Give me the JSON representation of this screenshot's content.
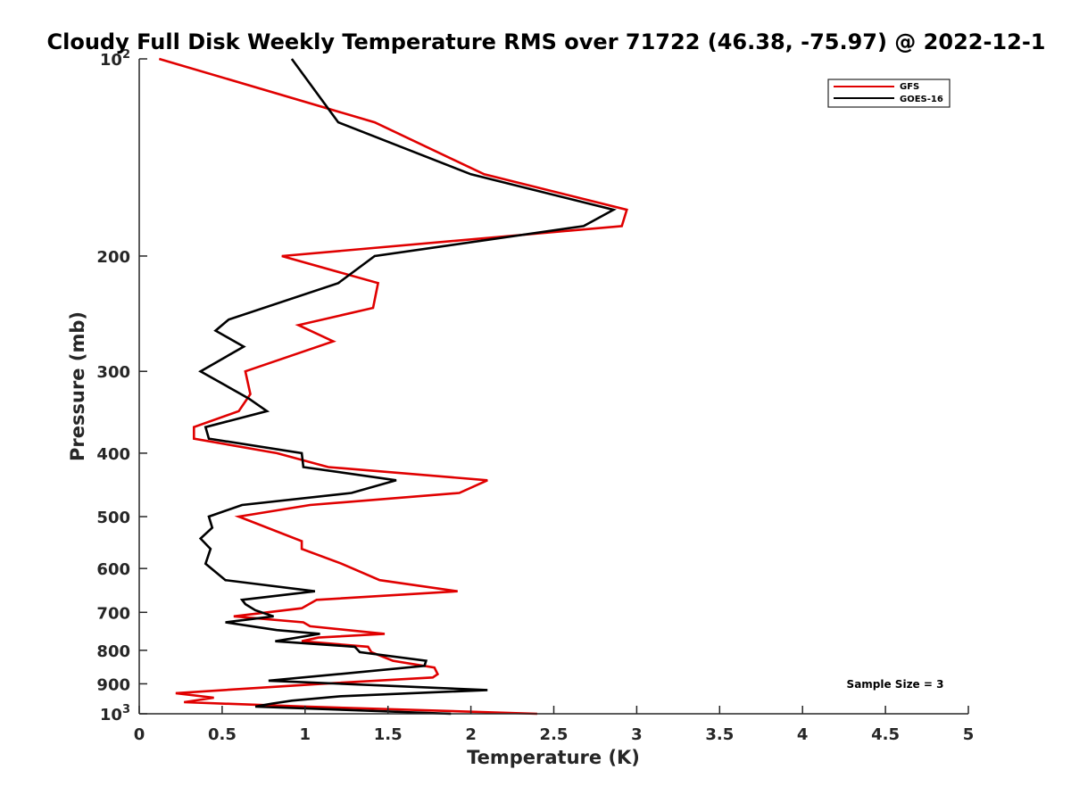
{
  "chart_data": {
    "type": "line",
    "title": "Cloudy Full Disk Weekly Temperature RMS over 71722 (46.38, -75.97) @ 2022-12-1",
    "xlabel": "Temperature (K)",
    "ylabel": "Pressure (mb)",
    "xlim": [
      0,
      5
    ],
    "ylim": [
      100,
      1000
    ],
    "y_scale": "log",
    "y_reversed": true,
    "x_ticks": [
      "0",
      "0.5",
      "1",
      "1.5",
      "2",
      "2.5",
      "3",
      "3.5",
      "4",
      "4.5",
      "5"
    ],
    "y_ticks": [
      {
        "value": 100,
        "base": "10",
        "exp": "2"
      },
      {
        "value": 200,
        "label": "200"
      },
      {
        "value": 300,
        "label": "300"
      },
      {
        "value": 400,
        "label": "400"
      },
      {
        "value": 500,
        "label": "500"
      },
      {
        "value": 600,
        "label": "600"
      },
      {
        "value": 700,
        "label": "700"
      },
      {
        "value": 800,
        "label": "800"
      },
      {
        "value": 900,
        "label": "900"
      },
      {
        "value": 1000,
        "base": "10",
        "exp": "3"
      }
    ],
    "legend_position": "top-right",
    "grid": false,
    "annotation": "Sample Size = 3",
    "series": [
      {
        "name": "GFS",
        "color": "#e00000",
        "points": [
          [
            0.12,
            100
          ],
          [
            1.42,
            125
          ],
          [
            2.08,
            150
          ],
          [
            2.94,
            170
          ],
          [
            2.91,
            180
          ],
          [
            0.86,
            200
          ],
          [
            1.44,
            220
          ],
          [
            1.41,
            240
          ],
          [
            0.96,
            255
          ],
          [
            1.17,
            270
          ],
          [
            0.64,
            300
          ],
          [
            0.67,
            325
          ],
          [
            0.6,
            345
          ],
          [
            0.33,
            365
          ],
          [
            0.33,
            380
          ],
          [
            0.83,
            400
          ],
          [
            1.14,
            420
          ],
          [
            2.1,
            440
          ],
          [
            1.93,
            460
          ],
          [
            1.03,
            480
          ],
          [
            0.6,
            500
          ],
          [
            0.98,
            545
          ],
          [
            0.98,
            560
          ],
          [
            1.22,
            590
          ],
          [
            1.45,
            625
          ],
          [
            1.92,
            650
          ],
          [
            1.07,
            670
          ],
          [
            0.98,
            690
          ],
          [
            0.57,
            710
          ],
          [
            0.99,
            725
          ],
          [
            1.03,
            735
          ],
          [
            1.48,
            755
          ],
          [
            1.08,
            765
          ],
          [
            0.98,
            775
          ],
          [
            1.38,
            790
          ],
          [
            1.4,
            805
          ],
          [
            1.53,
            830
          ],
          [
            1.78,
            850
          ],
          [
            1.8,
            870
          ],
          [
            1.77,
            880
          ],
          [
            1.1,
            900
          ],
          [
            0.22,
            930
          ],
          [
            0.45,
            945
          ],
          [
            0.27,
            960
          ],
          [
            1.0,
            975
          ],
          [
            2.4,
            1000
          ]
        ]
      },
      {
        "name": "GOES-16",
        "color": "#000000",
        "points": [
          [
            0.92,
            100
          ],
          [
            1.2,
            125
          ],
          [
            2.0,
            150
          ],
          [
            2.86,
            170
          ],
          [
            2.68,
            180
          ],
          [
            1.42,
            200
          ],
          [
            1.2,
            220
          ],
          [
            0.54,
            250
          ],
          [
            0.46,
            260
          ],
          [
            0.63,
            275
          ],
          [
            0.37,
            300
          ],
          [
            0.66,
            330
          ],
          [
            0.77,
            345
          ],
          [
            0.4,
            365
          ],
          [
            0.42,
            380
          ],
          [
            0.98,
            400
          ],
          [
            0.99,
            420
          ],
          [
            1.55,
            440
          ],
          [
            1.28,
            460
          ],
          [
            0.62,
            480
          ],
          [
            0.42,
            500
          ],
          [
            0.44,
            520
          ],
          [
            0.37,
            540
          ],
          [
            0.43,
            560
          ],
          [
            0.4,
            590
          ],
          [
            0.52,
            625
          ],
          [
            1.06,
            650
          ],
          [
            0.62,
            670
          ],
          [
            0.64,
            680
          ],
          [
            0.7,
            695
          ],
          [
            0.81,
            710
          ],
          [
            0.52,
            725
          ],
          [
            0.83,
            745
          ],
          [
            1.09,
            755
          ],
          [
            0.82,
            775
          ],
          [
            1.3,
            790
          ],
          [
            1.33,
            805
          ],
          [
            1.73,
            830
          ],
          [
            1.72,
            845
          ],
          [
            1.2,
            870
          ],
          [
            0.78,
            890
          ],
          [
            2.1,
            920
          ],
          [
            1.22,
            940
          ],
          [
            0.92,
            955
          ],
          [
            0.8,
            965
          ],
          [
            0.7,
            975
          ],
          [
            1.88,
            1000
          ]
        ]
      }
    ]
  }
}
